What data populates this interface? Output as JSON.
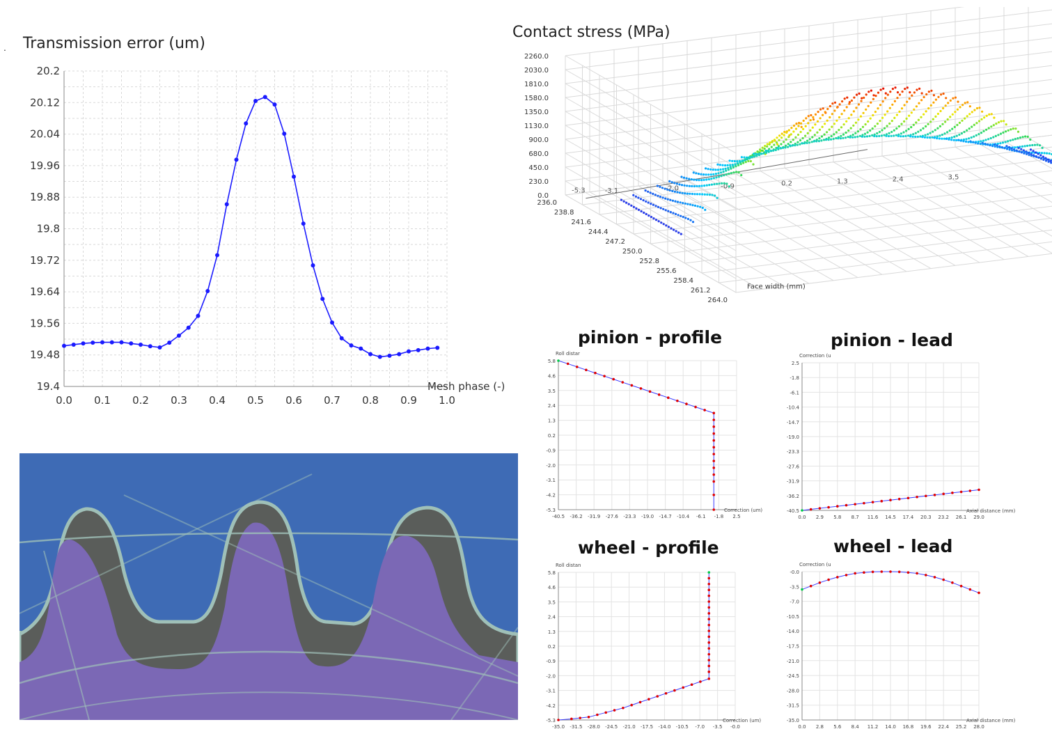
{
  "figure": {
    "transmission_title": "Transmission error (um)",
    "contact_title": "Contact stress (MPa)",
    "pinion_profile_title": "pinion - profile",
    "pinion_lead_title": "pinion - lead",
    "wheel_profile_title": "wheel - profile",
    "wheel_lead_title": "wheel - lead",
    "stray_mark": "."
  },
  "colors": {
    "te_line": "#1a1aff",
    "mod_line": "#3a3aff",
    "mod_point": "#e00000",
    "mod_start": "#00cc44",
    "grid": "#d8d8d8",
    "gear_bg": "#3e6bb5",
    "gear_tooth": "#7b68b5",
    "gear_material": "#5a5d5a",
    "gear_edge": "#9fc0b8"
  },
  "chart_data": [
    {
      "id": "transmission",
      "type": "line",
      "title": "Transmission error (um)",
      "xlabel": "Mesh phase (-)",
      "ylabel": "",
      "xlim": [
        0,
        1
      ],
      "ylim": [
        19.4,
        20.2
      ],
      "xticks": [
        "0.0",
        "0.1",
        "0.2",
        "0.3",
        "0.4",
        "0.5",
        "0.6",
        "0.7",
        "0.8",
        "0.9",
        "1.0"
      ],
      "yticks": [
        "20.2",
        "20.12",
        "20.04",
        "19.96",
        "19.88",
        "19.8",
        "19.72",
        "19.64",
        "19.56",
        "19.48",
        "19.4"
      ],
      "grid": true,
      "x": [
        0.0,
        0.025,
        0.05,
        0.075,
        0.1,
        0.125,
        0.15,
        0.175,
        0.2,
        0.225,
        0.25,
        0.275,
        0.3,
        0.325,
        0.35,
        0.375,
        0.4,
        0.425,
        0.45,
        0.475,
        0.5,
        0.525,
        0.55,
        0.575,
        0.6,
        0.625,
        0.65,
        0.675,
        0.7,
        0.725,
        0.75,
        0.775,
        0.8,
        0.825,
        0.85,
        0.875,
        0.9,
        0.925,
        0.95,
        0.975
      ],
      "y": [
        19.503,
        19.506,
        19.509,
        19.511,
        19.512,
        19.512,
        19.512,
        19.509,
        19.506,
        19.502,
        19.499,
        19.511,
        19.529,
        19.549,
        19.579,
        19.642,
        19.733,
        19.862,
        19.975,
        20.067,
        20.124,
        20.134,
        20.115,
        20.041,
        19.932,
        19.813,
        19.707,
        19.622,
        19.562,
        19.522,
        19.504,
        19.496,
        19.482,
        19.475,
        19.478,
        19.482,
        19.489,
        19.492,
        19.496,
        19.498
      ]
    },
    {
      "id": "contact",
      "type": "scatter",
      "title": "Contact stress (MPa)",
      "zticks": [
        "2260.0",
        "2030.0",
        "1810.0",
        "1580.0",
        "1350.0",
        "1130.0",
        "900.0",
        "680.0",
        "450.0",
        "230.0",
        "0.0"
      ],
      "xlabel": "Face width (mm)",
      "xticks": [
        "236.0",
        "238.8",
        "241.6",
        "244.4",
        "247.2",
        "250.0",
        "252.8",
        "255.6",
        "258.4",
        "261.2",
        "264.0"
      ],
      "yticks": [
        "-5.3",
        "-3.1",
        "-2.0",
        "-0.9",
        "0.2",
        "1.3",
        "2.4",
        "3.5"
      ],
      "note": "3D scatter of contact stress over face width and roll distance; peak stress near 1980 MPa"
    },
    {
      "id": "pinion_profile",
      "type": "line",
      "title": "pinion - profile",
      "xlabel": "Correction (um)",
      "ylabel": "Roll distar",
      "xticks": [
        "-40.5",
        "-36.2",
        "-31.9",
        "-27.6",
        "-23.3",
        "-19.0",
        "-14.7",
        "-10.4",
        "-6.1",
        "-1.8",
        "2.5"
      ],
      "yticks": [
        "5.8",
        "4.6",
        "3.5",
        "2.4",
        "1.3",
        "0.2",
        "-0.9",
        "-2.0",
        "-3.1",
        "-4.2",
        "-5.3"
      ],
      "xlim": [
        -40.5,
        2.5
      ],
      "ylim": [
        -5.3,
        5.8
      ],
      "x": [
        -40.5,
        -38.2,
        -36.0,
        -33.8,
        -31.6,
        -29.4,
        -27.2,
        -25.0,
        -22.8,
        -20.6,
        -18.4,
        -16.2,
        -14.0,
        -11.8,
        -9.6,
        -7.4,
        -5.2,
        -3.0,
        -3.0,
        -3.0,
        -3.0,
        -3.0,
        -3.0,
        -3.0,
        -3.0,
        -3.0,
        -3.0,
        -3.0,
        -3.0,
        -3.0
      ],
      "y": [
        5.8,
        5.57,
        5.34,
        5.11,
        4.88,
        4.65,
        4.42,
        4.19,
        3.96,
        3.73,
        3.5,
        3.27,
        3.04,
        2.81,
        2.58,
        2.35,
        2.12,
        1.9,
        1.39,
        0.88,
        0.37,
        -0.14,
        -0.65,
        -1.16,
        -1.67,
        -2.18,
        -2.69,
        -3.2,
        -4.2,
        -5.3
      ]
    },
    {
      "id": "pinion_lead",
      "type": "line",
      "title": "pinion - lead",
      "xlabel": "Axial distance (mm)",
      "ylabel": "Correction (u",
      "xticks": [
        "0.0",
        "2.9",
        "5.8",
        "8.7",
        "11.6",
        "14.5",
        "17.4",
        "20.3",
        "23.2",
        "26.1",
        "29.0"
      ],
      "yticks": [
        "2.5",
        "-1.8",
        "-6.1",
        "-10.4",
        "-14.7",
        "-19.0",
        "-23.3",
        "-27.6",
        "-31.9",
        "-36.2",
        "-40.5"
      ],
      "xlim": [
        0,
        29
      ],
      "ylim": [
        -40.5,
        2.5
      ],
      "x": [
        0,
        1.45,
        2.9,
        4.35,
        5.8,
        7.25,
        8.7,
        10.15,
        11.6,
        13.05,
        14.5,
        15.95,
        17.4,
        18.85,
        20.3,
        21.75,
        23.2,
        24.65,
        26.1,
        27.55,
        29.0
      ],
      "y": [
        -40.5,
        -40.2,
        -39.9,
        -39.6,
        -39.3,
        -39.0,
        -38.7,
        -38.4,
        -38.1,
        -37.8,
        -37.5,
        -37.2,
        -36.9,
        -36.6,
        -36.3,
        -36.0,
        -35.7,
        -35.4,
        -35.1,
        -34.8,
        -34.5
      ]
    },
    {
      "id": "wheel_profile",
      "type": "line",
      "title": "wheel - profile",
      "xlabel": "Correction (um)",
      "ylabel": "Roll distan",
      "xticks": [
        "-35.0",
        "-31.5",
        "-28.0",
        "-24.5",
        "-21.0",
        "-17.5",
        "-14.0",
        "-10.5",
        "-7.0",
        "-3.5",
        "-0.0"
      ],
      "yticks": [
        "5.8",
        "4.6",
        "3.5",
        "2.4",
        "1.3",
        "0.2",
        "-0.9",
        "-2.0",
        "-3.1",
        "-4.2",
        "-5.3"
      ],
      "xlim": [
        -35,
        0
      ],
      "ylim": [
        -5.3,
        5.8
      ],
      "x": [
        -5.2,
        -5.2,
        -5.2,
        -5.2,
        -5.2,
        -5.2,
        -5.2,
        -5.2,
        -5.2,
        -5.2,
        -5.2,
        -5.2,
        -5.2,
        -5.2,
        -5.2,
        -5.2,
        -5.2,
        -5.2,
        -5.2,
        -6.9,
        -8.6,
        -10.3,
        -12.0,
        -13.7,
        -15.4,
        -17.1,
        -18.8,
        -20.5,
        -22.2,
        -23.9,
        -25.6,
        -27.3,
        -29.0,
        -30.7,
        -32.4,
        -35.0
      ],
      "y": [
        5.8,
        5.36,
        4.92,
        4.48,
        4.04,
        3.6,
        3.16,
        2.72,
        2.28,
        1.84,
        1.4,
        0.96,
        0.52,
        0.08,
        -0.36,
        -0.8,
        -1.24,
        -1.68,
        -2.2,
        -2.42,
        -2.64,
        -2.86,
        -3.08,
        -3.3,
        -3.52,
        -3.74,
        -3.96,
        -4.18,
        -4.4,
        -4.57,
        -4.74,
        -4.91,
        -5.08,
        -5.15,
        -5.22,
        -5.3
      ]
    },
    {
      "id": "wheel_lead",
      "type": "line",
      "title": "wheel - lead",
      "xlabel": "Axial distance (mm)",
      "ylabel": "Correction (u",
      "xticks": [
        "0.0",
        "2.8",
        "5.6",
        "8.4",
        "11.2",
        "14.0",
        "16.8",
        "19.6",
        "22.4",
        "25.2",
        "28.0"
      ],
      "yticks": [
        "-0.0",
        "-3.5",
        "-7.0",
        "-10.5",
        "-14.0",
        "-17.5",
        "-21.0",
        "-24.5",
        "-28.0",
        "-31.5",
        "-35.0"
      ],
      "xlim": [
        0,
        28
      ],
      "ylim": [
        -35,
        0
      ],
      "x": [
        0,
        1.4,
        2.8,
        4.2,
        5.6,
        7.0,
        8.4,
        9.8,
        11.2,
        12.6,
        14.0,
        15.4,
        16.8,
        18.2,
        19.6,
        21.0,
        22.4,
        23.8,
        25.2,
        26.6,
        28.0
      ],
      "y": [
        -4.2,
        -3.4,
        -2.6,
        -1.9,
        -1.3,
        -0.8,
        -0.4,
        -0.2,
        -0.05,
        0.0,
        0.0,
        -0.05,
        -0.2,
        -0.4,
        -0.8,
        -1.3,
        -1.9,
        -2.6,
        -3.4,
        -4.2,
        -5.0
      ]
    }
  ]
}
